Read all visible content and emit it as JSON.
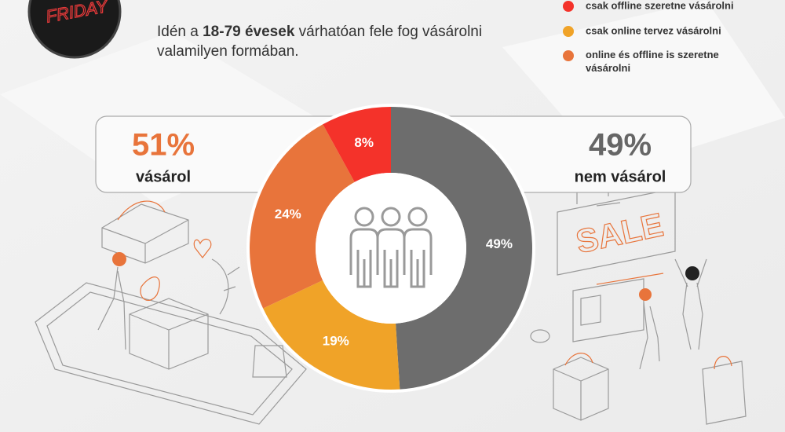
{
  "logo": {
    "text": "FRIDAY"
  },
  "header": {
    "subtitle_parts": [
      "Idén a ",
      "18-79 évesek",
      " várhatóan fele fog vásárolni",
      "valamilyen formában."
    ]
  },
  "illustration": {
    "sign": "SALE"
  },
  "callouts": [
    {
      "value": 51,
      "label": "51%",
      "caption": "vásárol",
      "color": "#e8743b"
    },
    {
      "value": 49,
      "label": "49%",
      "caption": "nem vásárol",
      "color": "#666666"
    }
  ],
  "chart_data": {
    "type": "donut",
    "categories": [
      null,
      "csak online tervez vásárolni",
      "online és offline is szeretne vásárolni",
      "csak offline szeretne vásárolni"
    ],
    "values": [
      49,
      19,
      24,
      8
    ],
    "value_labels": [
      "49%",
      "19%",
      "24%",
      "8%"
    ],
    "colors": [
      "#6d6d6d",
      "#f0a328",
      "#e8743b",
      "#f4322a"
    ]
  }
}
